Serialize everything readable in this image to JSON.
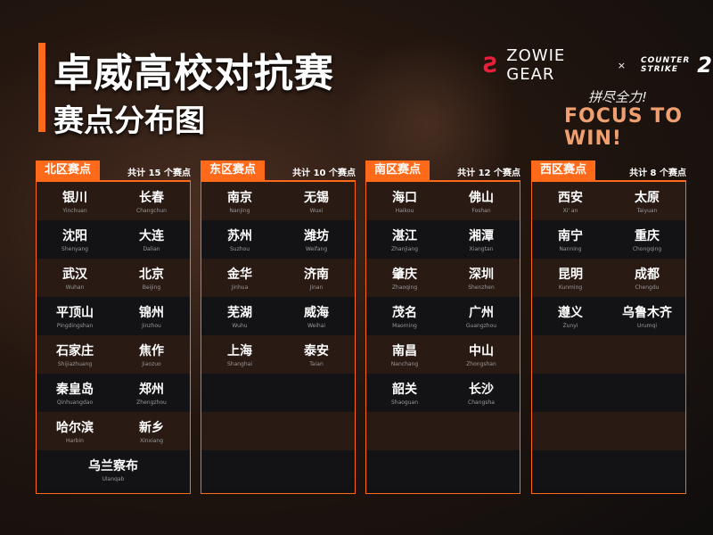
{
  "header": {
    "title": "卓威高校对抗赛",
    "subtitle": "赛点分布图"
  },
  "brand": {
    "zowie": "ZOWIE GEAR",
    "x": "×",
    "cs_line1": "COUNTER",
    "cs_line2": "STRIKE",
    "cs_num": "2",
    "slogan_cn": "拼尽全力!",
    "slogan_en": "FOCUS TO WIN!"
  },
  "colors": {
    "accent": "#ff6a1a",
    "zowie_red": "#e8203a"
  },
  "regions": [
    {
      "name": "北区赛点",
      "count": "共计 15 个赛点",
      "cities": [
        [
          "银川",
          "Yinchuan"
        ],
        [
          "长春",
          "Changchun"
        ],
        [
          "沈阳",
          "Shenyang"
        ],
        [
          "大连",
          "Dalian"
        ],
        [
          "武汉",
          "Wuhan"
        ],
        [
          "北京",
          "Beijing"
        ],
        [
          "平顶山",
          "Pingdingshan"
        ],
        [
          "锦州",
          "Jinzhou"
        ],
        [
          "石家庄",
          "Shijiazhuang"
        ],
        [
          "焦作",
          "Jiaozuo"
        ],
        [
          "秦皇岛",
          "Qinhuangdao"
        ],
        [
          "郑州",
          "Zhengzhou"
        ],
        [
          "哈尔滨",
          "Harbin"
        ],
        [
          "新乡",
          "Xinxiang"
        ],
        [
          "乌兰察布",
          "Ulanqab"
        ]
      ]
    },
    {
      "name": "东区赛点",
      "count": "共计 10 个赛点",
      "cities": [
        [
          "南京",
          "Nanjing"
        ],
        [
          "无锡",
          "Wuxi"
        ],
        [
          "苏州",
          "Suzhou"
        ],
        [
          "潍坊",
          "Weifang"
        ],
        [
          "金华",
          "Jinhua"
        ],
        [
          "济南",
          "Jinan"
        ],
        [
          "芜湖",
          "Wuhu"
        ],
        [
          "威海",
          "Weihai"
        ],
        [
          "上海",
          "Shanghai"
        ],
        [
          "泰安",
          "Taian"
        ]
      ]
    },
    {
      "name": "南区赛点",
      "count": "共计 12 个赛点",
      "cities": [
        [
          "海口",
          "Haikou"
        ],
        [
          "佛山",
          "Foshan"
        ],
        [
          "湛江",
          "Zhanjiang"
        ],
        [
          "湘潭",
          "Xiangtan"
        ],
        [
          "肇庆",
          "Zhaoqing"
        ],
        [
          "深圳",
          "Shenzhen"
        ],
        [
          "茂名",
          "Maoming"
        ],
        [
          "广州",
          "Guangzhou"
        ],
        [
          "南昌",
          "Nanchang"
        ],
        [
          "中山",
          "Zhongshan"
        ],
        [
          "韶关",
          "Shaoguan"
        ],
        [
          "长沙",
          "Changsha"
        ]
      ]
    },
    {
      "name": "西区赛点",
      "count": "共计 8 个赛点",
      "cities": [
        [
          "西安",
          "Xi' an"
        ],
        [
          "太原",
          "Taiyuan"
        ],
        [
          "南宁",
          "Nanning"
        ],
        [
          "重庆",
          "Chongqing"
        ],
        [
          "昆明",
          "Kunming"
        ],
        [
          "成都",
          "Chengdu"
        ],
        [
          "遵义",
          "Zunyi"
        ],
        [
          "乌鲁木齐",
          "Urumqi"
        ]
      ]
    }
  ]
}
